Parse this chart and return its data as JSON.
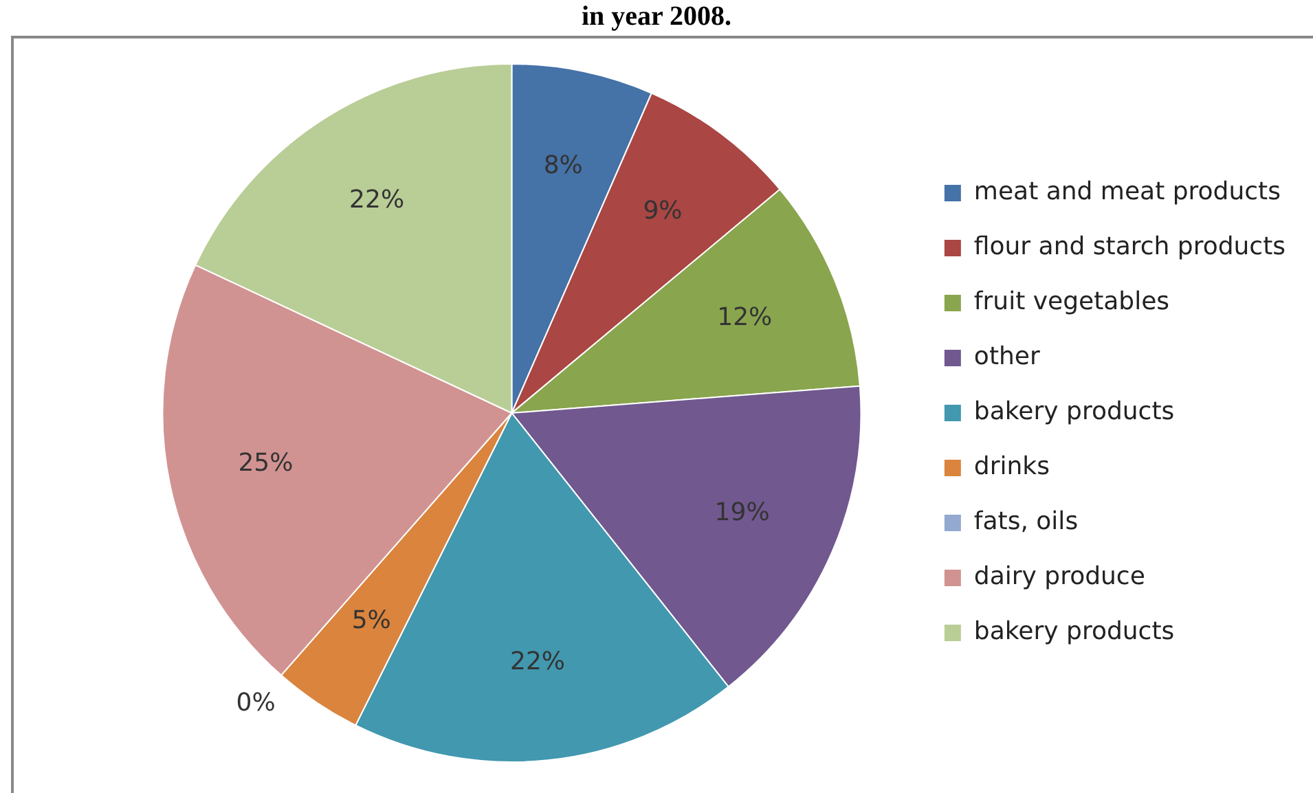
{
  "chart_data": {
    "type": "pie",
    "title": "in year 2008.",
    "categories": [
      "meat and meat products",
      "flour and starch products",
      "fruit vegetables",
      "other",
      "bakery products",
      "drinks",
      "fats, oils",
      "dairy produce",
      "bakery products"
    ],
    "values": [
      8,
      9,
      12,
      19,
      22,
      5,
      0,
      25,
      22
    ],
    "value_labels": [
      "8%",
      "9%",
      "12%",
      "19%",
      "22%",
      "5%",
      "0%",
      "25%",
      "22%"
    ],
    "colors": [
      "#4572a7",
      "#aa4643",
      "#89a54e",
      "#71588f",
      "#4198af",
      "#db843d",
      "#93a9cf",
      "#d19392",
      "#b9cd96"
    ],
    "legend": "right"
  }
}
